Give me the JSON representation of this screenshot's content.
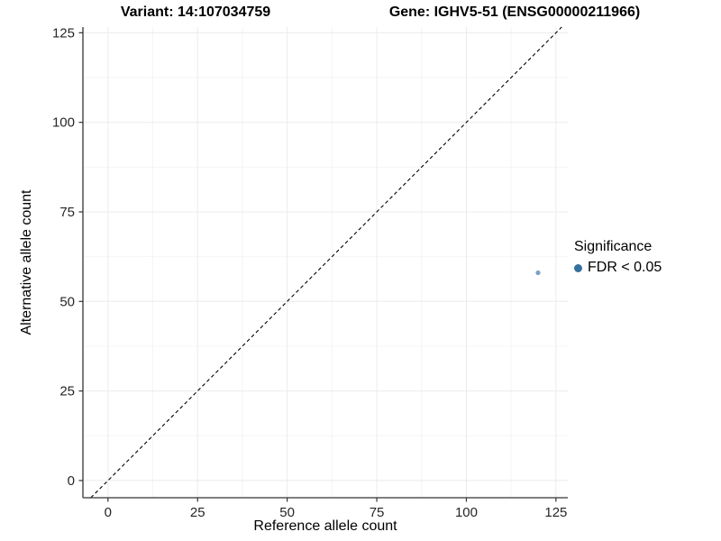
{
  "chart_data": {
    "type": "scatter",
    "titles": {
      "left": "Variant: 14:107034759",
      "right": "Gene: IGHV5-51 (ENSG00000211966)"
    },
    "xlabel": "Reference allele count",
    "ylabel": "Alternative allele count",
    "x_ticks": [
      0,
      25,
      50,
      75,
      100,
      125
    ],
    "y_ticks": [
      0,
      25,
      50,
      75,
      100,
      125
    ],
    "xlim": [
      -7,
      128.3
    ],
    "ylim": [
      -4.8,
      126.6
    ],
    "grid": {
      "major": true,
      "minor": true
    },
    "identity_line": {
      "style": "dashed",
      "equation": "y = x"
    },
    "points": [
      {
        "x": 120,
        "y": 58,
        "series": "FDR < 0.05",
        "color": "#5c88b8",
        "radius": 2.6,
        "opacity": 0.8
      }
    ],
    "legend": {
      "title": "Significance",
      "position": "right",
      "entries": [
        {
          "label": "FDR < 0.05",
          "color": "#35719f"
        }
      ]
    },
    "colors": {
      "background": "#ffffff",
      "grid_major": "#ebebeb",
      "grid_minor": "#f5f5f5",
      "axis_line": "#333333",
      "tick_mark": "#333333",
      "tick_text": "#262626",
      "dashed_line": "#000000"
    }
  }
}
